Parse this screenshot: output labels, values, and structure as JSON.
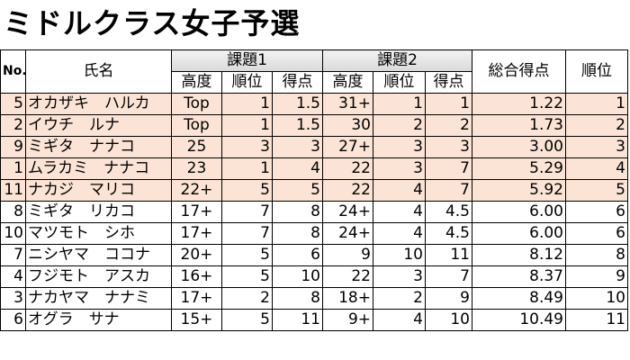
{
  "title": "ミドルクラス女子予選",
  "headers": {
    "no": "No.",
    "name": "氏名",
    "round1": "課題1",
    "round2": "課題2",
    "height": "高度",
    "rank": "順位",
    "points": "得点",
    "total": "総合得点",
    "final_rank": "順位"
  },
  "colors": {
    "qualified_row": "#fbe4d5",
    "round_header": "#d9d9d9"
  },
  "rows": [
    {
      "no": "5",
      "name": "オカザキ　ハルカ",
      "h1": "Top",
      "r1": "1",
      "p1": "1.5",
      "h2": "31+",
      "r2": "1",
      "p2": "1",
      "total": "1.22",
      "rank": "1",
      "qualified": true
    },
    {
      "no": "2",
      "name": "イウチ　ルナ",
      "h1": "Top",
      "r1": "1",
      "p1": "1.5",
      "h2": "30",
      "r2": "2",
      "p2": "2",
      "total": "1.73",
      "rank": "2",
      "qualified": true
    },
    {
      "no": "9",
      "name": "ミギタ　ナナコ",
      "h1": "25",
      "r1": "3",
      "p1": "3",
      "h2": "27+",
      "r2": "3",
      "p2": "3",
      "total": "3.00",
      "rank": "3",
      "qualified": true
    },
    {
      "no": "1",
      "name": "ムラカミ　ナナコ",
      "h1": "23",
      "r1": "1",
      "p1": "4",
      "h2": "22",
      "r2": "3",
      "p2": "7",
      "total": "5.29",
      "rank": "4",
      "qualified": true
    },
    {
      "no": "11",
      "name": "ナカジ　マリコ",
      "h1": "22+",
      "r1": "5",
      "p1": "5",
      "h2": "22",
      "r2": "4",
      "p2": "7",
      "total": "5.92",
      "rank": "5",
      "qualified": true
    },
    {
      "no": "8",
      "name": "ミギタ　リカコ",
      "h1": "17+",
      "r1": "7",
      "p1": "8",
      "h2": "24+",
      "r2": "4",
      "p2": "4.5",
      "total": "6.00",
      "rank": "6",
      "qualified": false
    },
    {
      "no": "10",
      "name": "マツモト　シホ",
      "h1": "17+",
      "r1": "7",
      "p1": "8",
      "h2": "24+",
      "r2": "4",
      "p2": "4.5",
      "total": "6.00",
      "rank": "6",
      "qualified": false
    },
    {
      "no": "7",
      "name": "ニシヤマ　ココナ",
      "h1": "20+",
      "r1": "5",
      "p1": "6",
      "h2": "9",
      "r2": "10",
      "p2": "11",
      "total": "8.12",
      "rank": "8",
      "qualified": false
    },
    {
      "no": "4",
      "name": "フジモト　アスカ",
      "h1": "16+",
      "r1": "5",
      "p1": "10",
      "h2": "22",
      "r2": "3",
      "p2": "7",
      "total": "8.37",
      "rank": "9",
      "qualified": false
    },
    {
      "no": "3",
      "name": "ナカヤマ　ナナミ",
      "h1": "17+",
      "r1": "2",
      "p1": "8",
      "h2": "18+",
      "r2": "2",
      "p2": "9",
      "total": "8.49",
      "rank": "10",
      "qualified": false
    },
    {
      "no": "6",
      "name": "オグラ　サナ",
      "h1": "15+",
      "r1": "5",
      "p1": "11",
      "h2": "9+",
      "r2": "4",
      "p2": "10",
      "total": "10.49",
      "rank": "11",
      "qualified": false
    }
  ]
}
